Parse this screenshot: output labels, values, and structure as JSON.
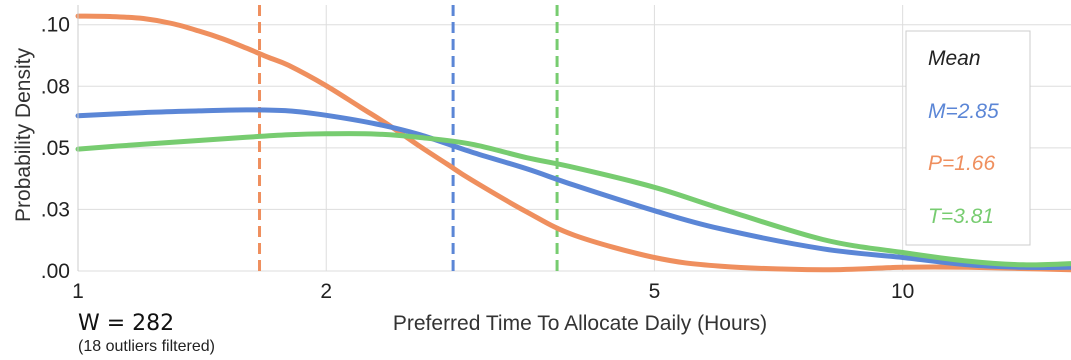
{
  "chart_data": {
    "type": "line",
    "xlabel": "Preferred Time To Allocate Daily (Hours)",
    "ylabel": "Probability Density",
    "xscale": "log",
    "xlim": [
      1,
      16
    ],
    "ylim": [
      0,
      0.108
    ],
    "x_ticks": [
      {
        "value": 1,
        "label": "1"
      },
      {
        "value": 2,
        "label": "2"
      },
      {
        "value": 5,
        "label": "5"
      },
      {
        "value": 10,
        "label": "10"
      }
    ],
    "y_ticks": [
      {
        "value": 0,
        "label": ".00"
      },
      {
        "value": 0.025,
        "label": ".03"
      },
      {
        "value": 0.05,
        "label": ".05"
      },
      {
        "value": 0.075,
        "label": ".08"
      },
      {
        "value": 0.1,
        "label": ".10"
      }
    ],
    "grid": true,
    "legend": {
      "title": "Mean",
      "placement": "right",
      "entries": [
        {
          "label": "M=2.85",
          "color": "#5b86d6"
        },
        {
          "label": "P=1.66",
          "color": "#ef8f5e"
        },
        {
          "label": "T=3.81",
          "color": "#77cc70"
        }
      ]
    },
    "series": [
      {
        "color": "#5b86d6",
        "mean": 2.85,
        "x": [
          1,
          1.2,
          1.4,
          1.6,
          1.8,
          2,
          2.3,
          2.6,
          3,
          3.5,
          4,
          5,
          6,
          8,
          10,
          12,
          14,
          16
        ],
        "y": [
          0.063,
          0.0643,
          0.065,
          0.0654,
          0.065,
          0.0632,
          0.0597,
          0.0553,
          0.0483,
          0.0415,
          0.0348,
          0.0245,
          0.0172,
          0.009,
          0.0055,
          0.0025,
          0.0015,
          0.0015
        ]
      },
      {
        "color": "#ef8f5e",
        "mean": 1.66,
        "x": [
          1,
          1.1,
          1.2,
          1.3,
          1.4,
          1.5,
          1.6,
          1.7,
          1.8,
          2,
          2.2,
          2.4,
          2.6,
          2.8,
          3,
          3.5,
          4,
          5,
          6,
          8,
          10,
          12,
          16
        ],
        "y": [
          0.1035,
          0.1033,
          0.1025,
          0.1005,
          0.0975,
          0.0942,
          0.0905,
          0.0868,
          0.0835,
          0.0752,
          0.0665,
          0.0585,
          0.0505,
          0.0435,
          0.037,
          0.024,
          0.0145,
          0.0055,
          0.002,
          0.0005,
          0.0015,
          0.0015,
          0.0005
        ]
      },
      {
        "color": "#77cc70",
        "mean": 3.81,
        "x": [
          1,
          1.2,
          1.4,
          1.6,
          1.8,
          2,
          2.3,
          2.6,
          3,
          3.5,
          4,
          5,
          6,
          8,
          10,
          12,
          14,
          16
        ],
        "y": [
          0.0495,
          0.0515,
          0.053,
          0.0543,
          0.0553,
          0.0557,
          0.0556,
          0.0542,
          0.0515,
          0.046,
          0.042,
          0.034,
          0.0255,
          0.0128,
          0.0075,
          0.004,
          0.0025,
          0.003
        ]
      }
    ]
  },
  "annotation": {
    "sample": "W = 282",
    "note": "(18 outliers filtered)"
  }
}
